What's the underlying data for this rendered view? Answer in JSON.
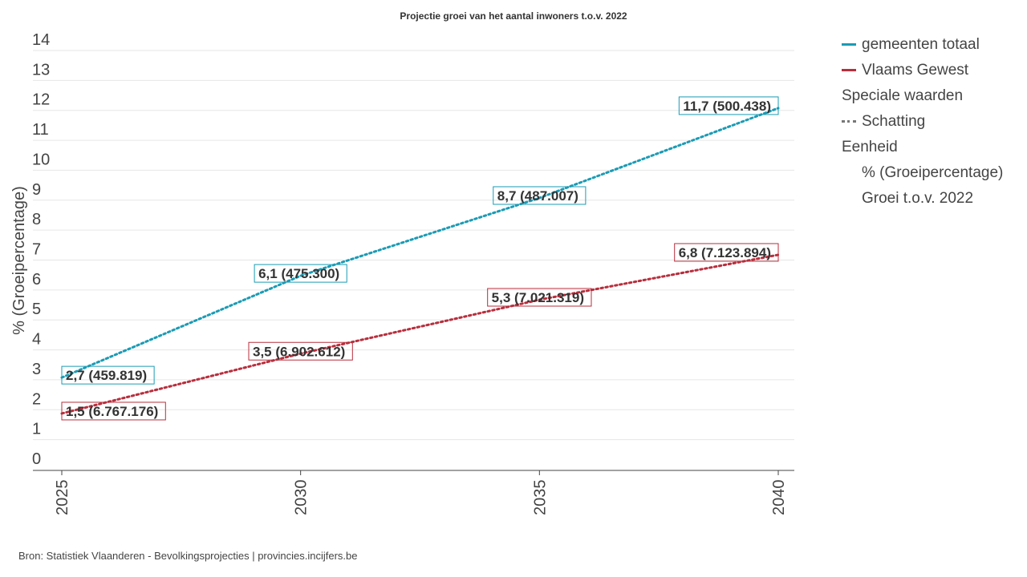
{
  "chart_data": {
    "type": "line",
    "title": "Projectie groei van het aantal inwoners t.o.v. 2022",
    "ylabel": "% (Groeipercentage)",
    "xlabel": "",
    "x": [
      2025,
      2030,
      2035,
      2040
    ],
    "xticks": [
      "2025",
      "2030",
      "2035",
      "2040"
    ],
    "yticks": [
      "0",
      "1",
      "2",
      "3",
      "4",
      "5",
      "6",
      "7",
      "8",
      "9",
      "10",
      "11",
      "12",
      "13",
      "14"
    ],
    "ylim": [
      0,
      14
    ],
    "xlim": [
      2025,
      2040
    ],
    "grid": true,
    "legend_position": "right",
    "series": [
      {
        "name": "gemeenten totaal",
        "color": "#1a9bb5",
        "style": "dotted",
        "values": [
          2.7,
          6.1,
          8.7,
          11.7
        ],
        "labels": [
          "2,7 (459.819)",
          "6,1 (475.300)",
          "8,7 (487.007)",
          "11,7 (500.438)"
        ]
      },
      {
        "name": "Vlaams Gewest",
        "color": "#b82e3c",
        "style": "dotted",
        "values": [
          1.5,
          3.5,
          5.3,
          6.8
        ],
        "labels": [
          "1,5 (6.767.176)",
          "3,5 (6.902.612)",
          "5,3 (7.021.319)",
          "6,8 (7.123.894)"
        ]
      }
    ]
  },
  "legend": {
    "series_1": "gemeenten totaal",
    "series_2": "Vlaams Gewest",
    "special_header": "Speciale waarden",
    "estimate": "Schatting",
    "unit_header": "Eenheid",
    "unit_1": "% (Groeipercentage)",
    "unit_2": "Groei t.o.v. 2022"
  },
  "source": "Bron: Statistiek Vlaanderen - Bevolkingsprojecties | provincies.incijfers.be"
}
